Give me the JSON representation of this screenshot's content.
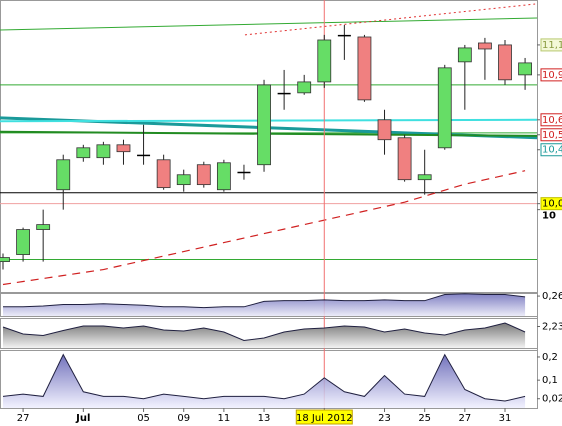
{
  "chart_data": {
    "type": "candlestick",
    "categories": [
      null,
      "27",
      null,
      null,
      "Jul",
      null,
      null,
      "05",
      null,
      "09",
      null,
      "11",
      null,
      "13",
      null,
      null,
      "18 Jul 2012",
      null,
      null,
      "23",
      null,
      "25",
      null,
      "27",
      null,
      "31",
      null
    ],
    "open": [
      9.653,
      9.7,
      9.867,
      10.133,
      10.347,
      10.347,
      10.433,
      10.367,
      10.333,
      10.167,
      10.3,
      10.133,
      10.253,
      10.3,
      10.78,
      10.78,
      10.853,
      11.167,
      11.153,
      10.6,
      10.48,
      10.2,
      10.413,
      10.987,
      11.113,
      11.1,
      10.9
    ],
    "high": [
      9.707,
      9.88,
      10.0,
      10.367,
      10.433,
      10.453,
      10.467,
      10.567,
      10.367,
      10.267,
      10.32,
      10.333,
      10.3,
      10.867,
      10.933,
      10.9,
      11.167,
      11.233,
      11.167,
      10.667,
      10.5,
      10.4,
      10.967,
      11.1,
      11.147,
      11.133,
      11.013
    ],
    "low": [
      9.6,
      9.653,
      9.653,
      10.0,
      10.32,
      10.3,
      10.3,
      10.3,
      10.133,
      10.12,
      10.147,
      10.12,
      10.2,
      10.253,
      10.667,
      10.767,
      10.813,
      11.0,
      10.72,
      10.367,
      10.187,
      10.1,
      10.4,
      10.667,
      10.867,
      10.833,
      10.8
    ],
    "close": [
      9.68,
      9.867,
      9.9,
      10.333,
      10.413,
      10.433,
      10.387,
      10.367,
      10.147,
      10.233,
      10.167,
      10.313,
      10.253,
      10.833,
      10.78,
      10.853,
      11.133,
      11.167,
      10.733,
      10.467,
      10.2,
      10.233,
      10.947,
      11.08,
      11.073,
      10.867,
      10.98
    ],
    "up_color": "#66dd66",
    "down_color": "#f08080",
    "doji_color": "#000000",
    "ylim": [
      9.45,
      11.4
    ],
    "yticks": [
      {
        "value": 11.1,
        "label": "11,1"
      },
      {
        "value": 10.9,
        "label": "10,9"
      },
      {
        "value": 10.6,
        "label": "10,6"
      },
      {
        "value": 10.5,
        "label": "10,5"
      },
      {
        "value": 10.4,
        "label": "10,4"
      },
      {
        "value": 10.04,
        "label": "10,0"
      },
      10
    ],
    "ytick_text_colors": [
      "#8a9a40",
      "#d02020",
      "#d02020",
      "#d02020",
      "#1a9a9a",
      "#000000",
      "#000000"
    ],
    "ytick_fill_colors": [
      "#f4f8d8",
      "#ffffff",
      "#ffffff",
      "#ffffff",
      "#ffffff",
      "#ffff00",
      "#ffffff"
    ],
    "ytick_border_colors": [
      "#b8c870",
      "#d02020",
      "#d02020",
      "#d02020",
      "#1a9a9a",
      "#c0c000",
      "none"
    ],
    "hlines": [
      {
        "value": 10.113,
        "color": "#000000"
      },
      {
        "value": 10.833,
        "color": "#33aa33"
      },
      {
        "value": 9.667,
        "color": "#33aa33"
      },
      {
        "value": 10.04,
        "color": "#f0a0a0"
      },
      {
        "value": 10.513,
        "color": "#33aa33"
      }
    ],
    "trendlines": [
      {
        "color": "#33aa33",
        "width": 1,
        "x": [
          -0.15,
          26.6
        ],
        "values": [
          11.2,
          11.28
        ]
      },
      {
        "color": "#1a9a9a",
        "width": 3,
        "x": [
          -0.15,
          26.6
        ],
        "values": [
          10.613,
          10.48
        ]
      },
      {
        "color": "#40e0e0",
        "width": 2,
        "x": [
          -0.15,
          26.6
        ],
        "values": [
          10.59,
          10.6
        ]
      },
      {
        "color": "#228b22",
        "width": 2,
        "x": [
          -0.15,
          26.6
        ],
        "values": [
          10.52,
          10.493
        ]
      },
      {
        "color": "#e03030",
        "width": 1,
        "dash": "2,3",
        "x": [
          12.05,
          26.5
        ],
        "values": [
          11.167,
          11.373
        ]
      }
    ],
    "ma": {
      "color": "#d02020",
      "values": [
        9.5,
        9.52,
        9.54,
        9.56,
        9.58,
        9.6,
        9.63,
        9.66,
        9.69,
        9.72,
        9.75,
        9.78,
        9.81,
        9.84,
        9.87,
        9.9,
        9.93,
        9.96,
        9.99,
        10.02,
        10.05,
        10.09,
        10.13,
        10.17,
        10.2,
        10.23,
        10.26
      ]
    },
    "cursor_index": 16,
    "panels": [
      {
        "color": "#6a6ab8",
        "ylim": [
          0,
          0.3
        ],
        "yticks": [
          {
            "value": 0.26,
            "label": "0,26"
          }
        ],
        "values": [
          0.12,
          0.12,
          0.13,
          0.15,
          0.15,
          0.16,
          0.15,
          0.14,
          0.12,
          0.12,
          0.11,
          0.12,
          0.12,
          0.19,
          0.2,
          0.2,
          0.21,
          0.2,
          0.2,
          0.21,
          0.2,
          0.2,
          0.28,
          0.29,
          0.28,
          0.28,
          0.25
        ]
      },
      {
        "color": "#707070",
        "ylim": [
          1.8,
          2.4
        ],
        "yticks": [
          {
            "value": 2.23,
            "label": "2,23"
          }
        ],
        "values": [
          2.22,
          2.08,
          2.05,
          2.15,
          2.24,
          2.24,
          2.2,
          2.24,
          2.16,
          2.14,
          2.2,
          2.12,
          1.95,
          2.0,
          2.12,
          2.18,
          2.2,
          2.24,
          2.22,
          2.12,
          2.18,
          2.1,
          2.06,
          2.16,
          2.2,
          2.3,
          2.12
        ]
      },
      {
        "color": "#5a5ab0",
        "ylim": [
          -0.02,
          0.23
        ],
        "yticks": [
          {
            "value": 0.2,
            "label": "0,2"
          },
          {
            "value": 0.1,
            "label": "0,1"
          },
          {
            "value": 0.02,
            "label": "0,02"
          }
        ],
        "values": [
          0.03,
          0.04,
          0.03,
          0.21,
          0.05,
          0.03,
          0.03,
          0.02,
          0.04,
          0.03,
          0.02,
          0.03,
          0.03,
          0.03,
          0.02,
          0.04,
          0.11,
          0.05,
          0.03,
          0.12,
          0.04,
          0.03,
          0.21,
          0.06,
          0.02,
          0.01,
          0.03
        ]
      }
    ]
  }
}
